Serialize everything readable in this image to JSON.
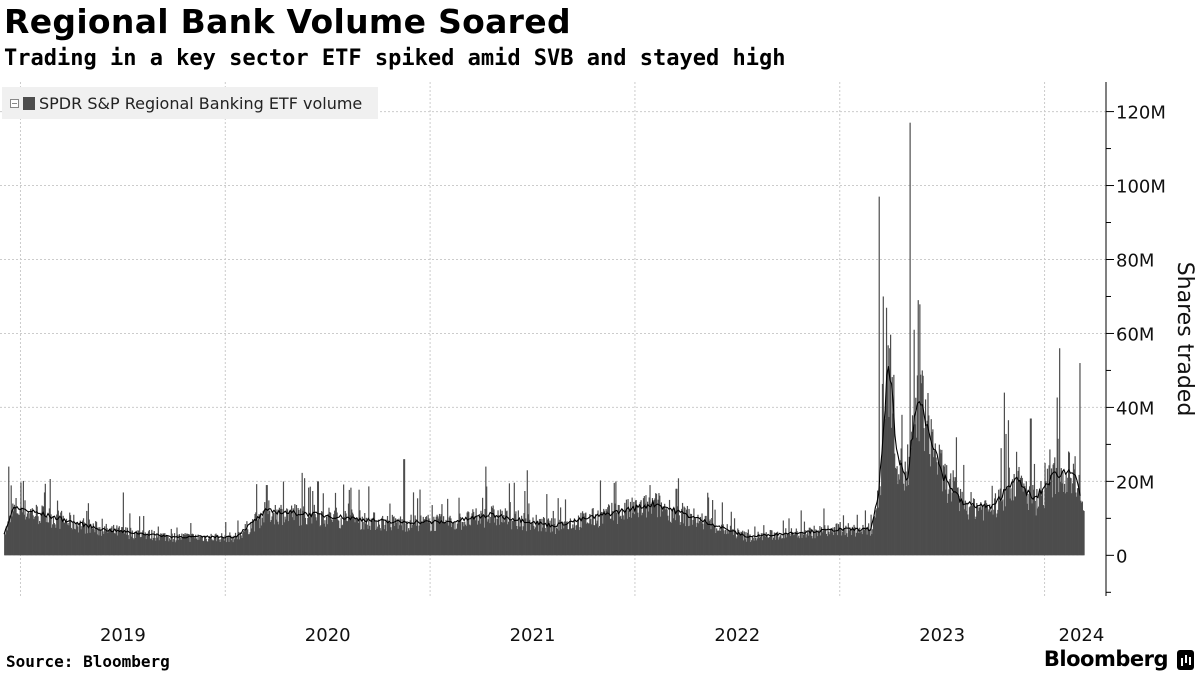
{
  "chart_data": {
    "type": "bar",
    "title": "Regional Bank Volume Soared",
    "subtitle": "Trading in a key sector ETF spiked amid SVB and stayed high",
    "legend": [
      "SPDR S&P Regional Banking ETF volume"
    ],
    "legend_position": "top-left",
    "ylabel": "Shares traded",
    "y_axis_side": "right",
    "ylim": [
      -11,
      128
    ],
    "y_ticks": [
      {
        "value": 0,
        "label": "0"
      },
      {
        "value": 20,
        "label": "20M"
      },
      {
        "value": 40,
        "label": "40M"
      },
      {
        "value": 60,
        "label": "60M"
      },
      {
        "value": 80,
        "label": "80M"
      },
      {
        "value": 100,
        "label": "100M"
      },
      {
        "value": 120,
        "label": "120M"
      }
    ],
    "x_ticks": [
      "2019",
      "2020",
      "2021",
      "2022",
      "2023",
      "2024"
    ],
    "xlim": [
      2018.9,
      2024.3
    ],
    "grid": true,
    "units": "millions of shares",
    "series_volume_key_points": [
      {
        "x": 2018.92,
        "y": 6
      },
      {
        "x": 2018.94,
        "y": 24
      },
      {
        "x": 2018.96,
        "y": 14
      },
      {
        "x": 2019.2,
        "y": 8
      },
      {
        "x": 2019.5,
        "y": 17
      },
      {
        "x": 2019.8,
        "y": 6
      },
      {
        "x": 2020.0,
        "y": 9
      },
      {
        "x": 2020.2,
        "y": 19
      },
      {
        "x": 2020.45,
        "y": 20
      },
      {
        "x": 2020.6,
        "y": 14
      },
      {
        "x": 2020.8,
        "y": 14
      },
      {
        "x": 2020.87,
        "y": 26
      },
      {
        "x": 2021.1,
        "y": 10
      },
      {
        "x": 2021.27,
        "y": 24
      },
      {
        "x": 2021.47,
        "y": 23
      },
      {
        "x": 2021.6,
        "y": 12
      },
      {
        "x": 2021.9,
        "y": 14
      },
      {
        "x": 2022.07,
        "y": 19
      },
      {
        "x": 2022.2,
        "y": 18
      },
      {
        "x": 2022.35,
        "y": 9
      },
      {
        "x": 2022.55,
        "y": 7
      },
      {
        "x": 2022.75,
        "y": 10
      },
      {
        "x": 2023.0,
        "y": 9
      },
      {
        "x": 2023.15,
        "y": 11
      },
      {
        "x": 2023.19,
        "y": 97
      },
      {
        "x": 2023.21,
        "y": 70
      },
      {
        "x": 2023.24,
        "y": 56
      },
      {
        "x": 2023.3,
        "y": 38
      },
      {
        "x": 2023.33,
        "y": 30
      },
      {
        "x": 2023.34,
        "y": 117
      },
      {
        "x": 2023.36,
        "y": 61
      },
      {
        "x": 2023.4,
        "y": 50
      },
      {
        "x": 2023.45,
        "y": 32
      },
      {
        "x": 2023.55,
        "y": 23
      },
      {
        "x": 2023.65,
        "y": 15
      },
      {
        "x": 2023.8,
        "y": 44
      },
      {
        "x": 2023.86,
        "y": 28
      },
      {
        "x": 2023.93,
        "y": 37
      },
      {
        "x": 2024.0,
        "y": 25
      },
      {
        "x": 2024.07,
        "y": 56
      },
      {
        "x": 2024.12,
        "y": 21
      },
      {
        "x": 2024.17,
        "y": 52
      },
      {
        "x": 2024.19,
        "y": 12
      }
    ],
    "series_moving_average_key_points": [
      {
        "x": 2018.92,
        "y": 6
      },
      {
        "x": 2018.97,
        "y": 13
      },
      {
        "x": 2019.4,
        "y": 7
      },
      {
        "x": 2019.75,
        "y": 5
      },
      {
        "x": 2020.05,
        "y": 5
      },
      {
        "x": 2020.2,
        "y": 12
      },
      {
        "x": 2020.45,
        "y": 11
      },
      {
        "x": 2020.8,
        "y": 9
      },
      {
        "x": 2021.1,
        "y": 9
      },
      {
        "x": 2021.3,
        "y": 11
      },
      {
        "x": 2021.6,
        "y": 8
      },
      {
        "x": 2022.1,
        "y": 14
      },
      {
        "x": 2022.35,
        "y": 9
      },
      {
        "x": 2022.55,
        "y": 5
      },
      {
        "x": 2022.75,
        "y": 6
      },
      {
        "x": 2023.0,
        "y": 7
      },
      {
        "x": 2023.15,
        "y": 7
      },
      {
        "x": 2023.19,
        "y": 16
      },
      {
        "x": 2023.24,
        "y": 54
      },
      {
        "x": 2023.28,
        "y": 26
      },
      {
        "x": 2023.33,
        "y": 20
      },
      {
        "x": 2023.37,
        "y": 40
      },
      {
        "x": 2023.4,
        "y": 41
      },
      {
        "x": 2023.5,
        "y": 22
      },
      {
        "x": 2023.6,
        "y": 14
      },
      {
        "x": 2023.75,
        "y": 13
      },
      {
        "x": 2023.85,
        "y": 21
      },
      {
        "x": 2023.95,
        "y": 15
      },
      {
        "x": 2024.05,
        "y": 22
      },
      {
        "x": 2024.15,
        "y": 23
      },
      {
        "x": 2024.18,
        "y": 15
      }
    ],
    "colors": {
      "bars": "#4d4d4d",
      "average_line": "#000000",
      "grid": "#cccccc",
      "axis": "#000000"
    }
  },
  "footer": {
    "source": "Source: Bloomberg",
    "brand": "Bloomberg"
  }
}
